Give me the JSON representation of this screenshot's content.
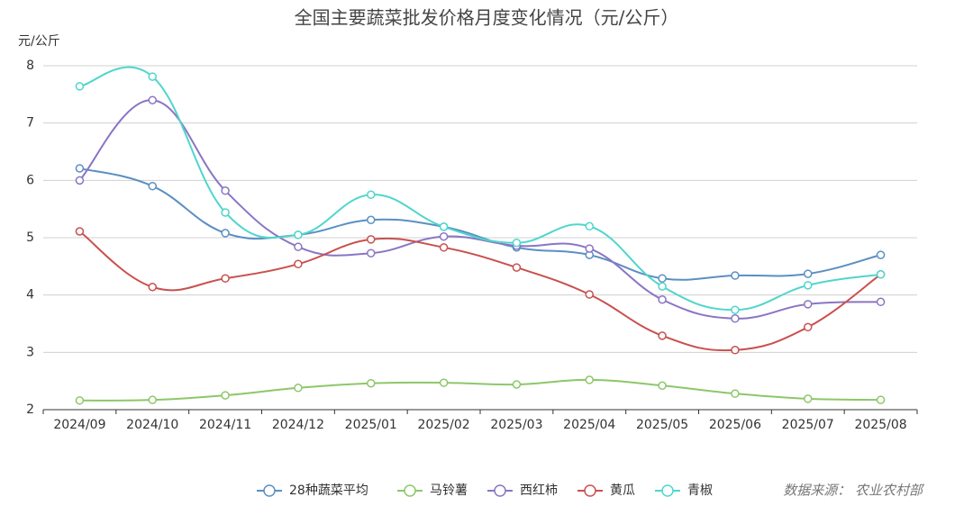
{
  "chart_data": {
    "type": "line",
    "title": "全国主要蔬菜批发价格月度变化情况（元/公斤）",
    "y_label": "元/公斤",
    "source": "数据来源： 农业农村部",
    "categories": [
      "2024/09",
      "2024/10",
      "2024/11",
      "2024/12",
      "2025/01",
      "2025/02",
      "2025/03",
      "2025/04",
      "2025/05",
      "2025/06",
      "2025/07",
      "2025/08"
    ],
    "series": [
      {
        "name": "28种蔬菜平均",
        "color": "#5b8fc2",
        "values": [
          6.21,
          5.9,
          5.08,
          5.05,
          5.31,
          5.19,
          4.83,
          4.7,
          4.29,
          4.34,
          4.37,
          4.7
        ]
      },
      {
        "name": "马铃薯",
        "color": "#8dc76a",
        "values": [
          2.16,
          2.17,
          2.25,
          2.38,
          2.46,
          2.47,
          2.44,
          2.52,
          2.42,
          2.28,
          2.19,
          2.17
        ]
      },
      {
        "name": "西红柿",
        "color": "#8a75c4",
        "values": [
          6.0,
          7.4,
          5.82,
          4.84,
          4.73,
          5.02,
          4.86,
          4.81,
          3.92,
          3.59,
          3.84,
          3.88
        ]
      },
      {
        "name": "黄瓜",
        "color": "#c9504e",
        "values": [
          5.11,
          4.14,
          4.29,
          4.54,
          4.97,
          4.83,
          4.48,
          4.01,
          3.29,
          3.04,
          3.44,
          4.36
        ]
      },
      {
        "name": "青椒",
        "color": "#4fd6cc",
        "values": [
          7.64,
          7.81,
          5.44,
          5.05,
          5.75,
          5.19,
          4.91,
          5.2,
          4.15,
          3.74,
          4.17,
          4.36
        ]
      }
    ],
    "ylim": [
      2,
      8
    ],
    "yticks": [
      2,
      3,
      4,
      5,
      6,
      7,
      8
    ],
    "grid": true,
    "smooth": true,
    "legend": "bottom"
  }
}
